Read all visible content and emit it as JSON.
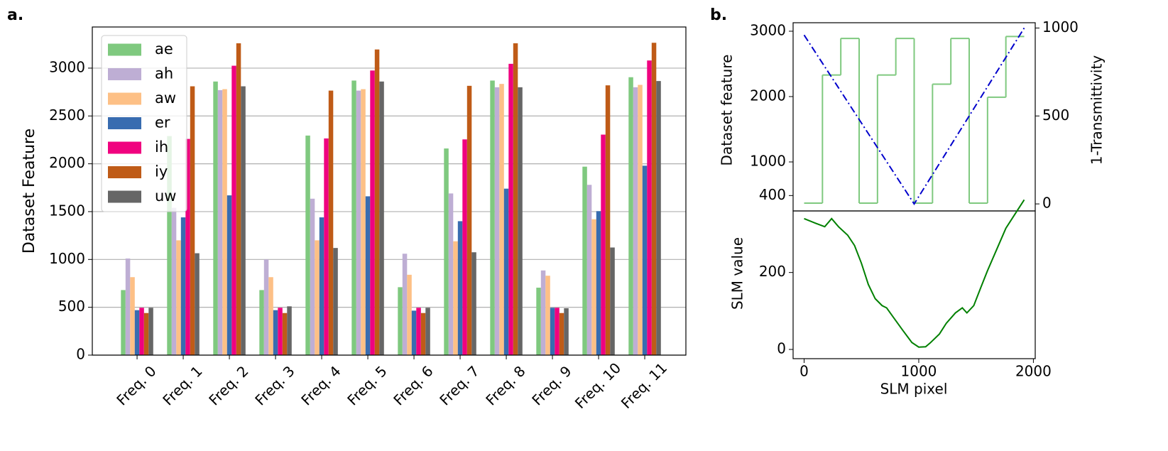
{
  "chart_data": [
    {
      "type": "bar",
      "panel_label": "a.",
      "ylabel": "Dataset Feature",
      "categories": [
        "Freq. 0",
        "Freq. 1",
        "Freq. 2",
        "Freq. 3",
        "Freq. 4",
        "Freq. 5",
        "Freq. 6",
        "Freq. 7",
        "Freq. 8",
        "Freq. 9",
        "Freq. 10",
        "Freq. 11"
      ],
      "series": [
        {
          "name": "ae",
          "color": "#7fc97f",
          "values": [
            680,
            2290,
            2860,
            680,
            2295,
            2870,
            710,
            2160,
            2870,
            705,
            1970,
            2905
          ]
        },
        {
          "name": "ah",
          "color": "#beaed4",
          "values": [
            1010,
            1540,
            2770,
            1000,
            1635,
            2765,
            1060,
            1690,
            2800,
            885,
            1780,
            2800
          ]
        },
        {
          "name": "aw",
          "color": "#fdc086",
          "values": [
            815,
            1200,
            2780,
            815,
            1200,
            2780,
            840,
            1190,
            2835,
            830,
            1420,
            2825
          ]
        },
        {
          "name": "er",
          "color": "#386cb0",
          "values": [
            470,
            1440,
            1670,
            470,
            1440,
            1660,
            465,
            1400,
            1740,
            495,
            1505,
            1980
          ]
        },
        {
          "name": "ih",
          "color": "#f0027f",
          "values": [
            495,
            2260,
            3025,
            495,
            2265,
            2975,
            495,
            2255,
            3045,
            495,
            2305,
            3080
          ]
        },
        {
          "name": "iy",
          "color": "#bf5b17",
          "values": [
            440,
            2810,
            3260,
            440,
            2765,
            3195,
            440,
            2815,
            3260,
            440,
            2820,
            3265
          ]
        },
        {
          "name": "uw",
          "color": "#666666",
          "values": [
            495,
            1065,
            2810,
            510,
            1120,
            2860,
            495,
            1075,
            2800,
            490,
            1125,
            2865
          ]
        }
      ],
      "ylim": [
        0,
        3430
      ],
      "yticks": [
        0,
        500,
        1000,
        1500,
        2000,
        2500,
        3000
      ],
      "grid": true,
      "legend": "upper left"
    },
    {
      "type": "step",
      "panel_label": "b.",
      "ylabel": "Dataset feature",
      "y2label": "1-Transmittivity",
      "series": [
        {
          "color": "#7fc97f",
          "bins": [
            0,
            160,
            320,
            480,
            640,
            800,
            960,
            1120,
            1280,
            1440,
            1600,
            1760,
            1920
          ],
          "values": [
            370,
            2330,
            2890,
            370,
            2330,
            2890,
            370,
            2190,
            2890,
            370,
            1990,
            2920
          ]
        },
        {
          "color": "#0000cc",
          "style": "dashdot",
          "axis": "y2",
          "x": [
            0,
            960,
            1920
          ],
          "values": [
            960,
            0,
            1000
          ]
        }
      ],
      "xlim": [
        -96,
        2016
      ],
      "ylim": [
        250,
        3130
      ],
      "yticks": [
        1000,
        2000,
        3000
      ],
      "y2lim": [
        -40,
        1030
      ],
      "y2ticks": [
        0,
        500,
        1000
      ],
      "y2color": "#0000ff"
    },
    {
      "type": "line",
      "ylabel": "SLM value",
      "xlabel": "SLM pixel",
      "color": "#008000",
      "x": [
        0,
        100,
        180,
        240,
        300,
        380,
        440,
        500,
        560,
        620,
        680,
        720,
        780,
        860,
        940,
        1000,
        1060,
        1100,
        1180,
        1240,
        1320,
        1380,
        1420,
        1480,
        1540,
        1600,
        1680,
        1760,
        1840,
        1920
      ],
      "values": [
        340,
        328,
        319,
        340,
        319,
        297,
        270,
        224,
        169,
        132,
        114,
        108,
        83,
        50,
        18,
        6,
        7,
        17,
        40,
        68,
        95,
        108,
        95,
        114,
        160,
        205,
        260,
        315,
        352,
        389
      ],
      "xlim": [
        -96,
        2016
      ],
      "xticks": [
        0,
        1000,
        2000
      ],
      "ylim": [
        -24,
        360
      ],
      "yticks": [
        0,
        200,
        400
      ]
    }
  ]
}
